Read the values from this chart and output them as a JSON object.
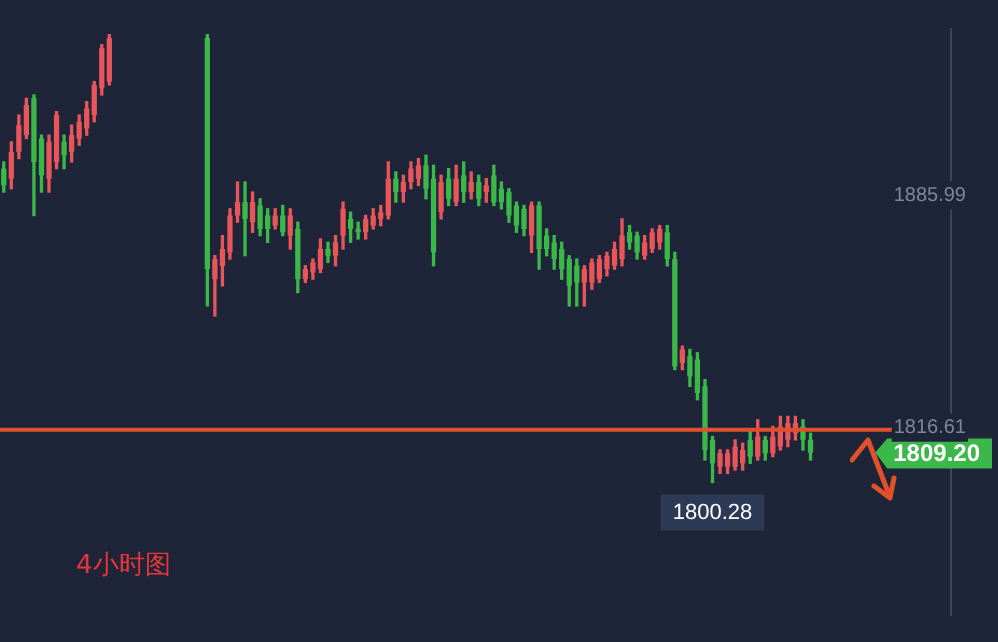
{
  "chart_data": {
    "type": "candlestick",
    "categories": [
      null,
      null,
      null,
      null,
      null,
      null,
      null,
      null,
      null,
      null,
      null,
      null,
      null,
      null,
      null,
      null,
      null,
      null,
      null,
      null,
      null,
      null,
      null,
      null,
      null,
      null,
      null,
      null,
      null,
      null,
      null,
      null,
      null,
      null,
      null,
      null,
      null,
      null,
      null,
      null,
      null,
      null,
      null,
      null,
      null,
      null,
      null,
      null,
      null,
      null,
      null,
      null,
      null,
      null,
      null,
      null,
      null,
      null,
      null,
      null,
      null,
      null,
      null,
      null,
      null,
      null,
      null,
      null,
      null,
      null,
      null,
      null,
      null,
      null,
      null,
      null,
      null,
      null,
      null,
      null,
      null,
      null,
      null,
      null,
      null,
      null,
      null,
      null,
      null,
      null,
      null,
      null,
      null,
      null,
      null,
      null,
      null,
      null,
      null,
      null,
      null,
      null,
      null,
      null,
      null,
      null,
      null,
      null,
      null,
      null,
      null,
      null,
      null,
      null,
      null,
      null,
      null,
      null,
      null,
      null,
      null,
      null,
      null,
      null,
      null,
      null
    ],
    "ohlc": [
      [
        1894,
        1896,
        1887,
        1889
      ],
      [
        1891,
        1902,
        1888,
        1899
      ],
      [
        1899,
        1910,
        1897,
        1907
      ],
      [
        1904,
        1915,
        1903,
        1913
      ],
      [
        1915,
        1916,
        1880,
        1896
      ],
      [
        1903,
        1904,
        1887,
        1892
      ],
      [
        1891,
        1904,
        1887,
        1902
      ],
      [
        1896,
        1911,
        1894,
        1910
      ],
      [
        1902,
        1904,
        1894,
        1898
      ],
      [
        1899,
        1907,
        1896,
        1904
      ],
      [
        1903,
        1910,
        1901,
        1908
      ],
      [
        1906,
        1914,
        1904,
        1912
      ],
      [
        1910,
        1920,
        1908,
        1919
      ],
      [
        1918,
        1931,
        1916,
        1930
      ],
      [
        1920,
        1934,
        1919,
        1933
      ],
      null,
      null,
      null,
      null,
      null,
      null,
      null,
      null,
      null,
      null,
      null,
      null,
      [
        1933,
        1934,
        1853,
        1864
      ],
      [
        1861,
        1868,
        1850,
        1867
      ],
      [
        1865,
        1874,
        1859,
        1870
      ],
      [
        1869,
        1882,
        1867,
        1880
      ],
      [
        1880,
        1890,
        1878,
        1884
      ],
      [
        1884,
        1890,
        1868,
        1879
      ],
      [
        1878,
        1887,
        1875,
        1884
      ],
      [
        1883,
        1885,
        1874,
        1876
      ],
      [
        1880,
        1882,
        1872,
        1876
      ],
      [
        1877,
        1882,
        1876,
        1880
      ],
      [
        1880,
        1883,
        1874,
        1875
      ],
      [
        1874,
        1882,
        1870,
        1880
      ],
      [
        1876,
        1878,
        1857,
        1861
      ],
      [
        1861,
        1865,
        1860,
        1864
      ],
      [
        1863,
        1867,
        1861,
        1866
      ],
      [
        1864,
        1873,
        1863,
        1870
      ],
      [
        1870,
        1872,
        1866,
        1868
      ],
      [
        1868,
        1874,
        1865,
        1872
      ],
      [
        1874,
        1884,
        1870,
        1882
      ],
      [
        1879,
        1881,
        1872,
        1876
      ],
      [
        1876,
        1878,
        1873,
        1875
      ],
      [
        1875,
        1880,
        1873,
        1879
      ],
      [
        1877,
        1882,
        1876,
        1880
      ],
      [
        1879,
        1883,
        1877,
        1881
      ],
      [
        1880,
        1896,
        1879,
        1891
      ],
      [
        1891,
        1893,
        1884,
        1887
      ],
      [
        1887,
        1892,
        1884,
        1890
      ],
      [
        1890,
        1896,
        1888,
        1894
      ],
      [
        1891,
        1897,
        1889,
        1895
      ],
      [
        1895,
        1898,
        1885,
        1888
      ],
      [
        1891,
        1895,
        1865,
        1869
      ],
      [
        1881,
        1892,
        1879,
        1890
      ],
      [
        1891,
        1894,
        1883,
        1885
      ],
      [
        1884,
        1895,
        1883,
        1891
      ],
      [
        1892,
        1896,
        1884,
        1887
      ],
      [
        1887,
        1893,
        1885,
        1890
      ],
      [
        1890,
        1892,
        1883,
        1885
      ],
      [
        1887,
        1891,
        1884,
        1889
      ],
      [
        1892,
        1895,
        1883,
        1884
      ],
      [
        1888,
        1890,
        1882,
        1884
      ],
      [
        1887,
        1888,
        1878,
        1880
      ],
      [
        1883,
        1884,
        1875,
        1877
      ],
      [
        1882,
        1883,
        1874,
        1876
      ],
      [
        1874,
        1884,
        1869,
        1883
      ],
      [
        1883,
        1884,
        1864,
        1870
      ],
      [
        1874,
        1876,
        1868,
        1870
      ],
      [
        1872,
        1874,
        1864,
        1867
      ],
      [
        1870,
        1872,
        1861,
        1864
      ],
      [
        1867,
        1868,
        1853,
        1859
      ],
      [
        1865,
        1867,
        1853,
        1860
      ],
      [
        1860,
        1865,
        1853,
        1864
      ],
      [
        1860,
        1867,
        1858,
        1866
      ],
      [
        1861,
        1868,
        1860,
        1867
      ],
      [
        1864,
        1869,
        1862,
        1868
      ],
      [
        1865,
        1872,
        1864,
        1870
      ],
      [
        1867,
        1879,
        1865,
        1874
      ],
      [
        1875,
        1877,
        1870,
        1872
      ],
      [
        1874,
        1875,
        1867,
        1869
      ],
      [
        1868,
        1874,
        1867,
        1872
      ],
      [
        1870,
        1876,
        1869,
        1875
      ],
      [
        1872,
        1877,
        1870,
        1876
      ],
      [
        1875,
        1877,
        1865,
        1867
      ],
      [
        1867,
        1869,
        1834,
        1835
      ],
      [
        1836,
        1841,
        1834,
        1840
      ],
      [
        1838,
        1840,
        1829,
        1832
      ],
      [
        1837,
        1839,
        1825,
        1827
      ],
      [
        1829,
        1831,
        1807,
        1810
      ],
      [
        1813,
        1814,
        1800.28,
        1806
      ],
      [
        1805,
        1810,
        1803,
        1809
      ],
      [
        1805,
        1810,
        1803,
        1809
      ],
      [
        1805,
        1813,
        1804,
        1811
      ],
      [
        1806,
        1812,
        1804,
        1810
      ],
      [
        1813,
        1816,
        1806,
        1808
      ],
      [
        1808,
        1819,
        1807,
        1814
      ],
      [
        1813,
        1814,
        1807,
        1809
      ],
      [
        1809,
        1817,
        1808,
        1814
      ],
      [
        1811,
        1820,
        1810,
        1817
      ],
      [
        1813,
        1820,
        1811,
        1818
      ],
      [
        1815,
        1820,
        1813,
        1818
      ],
      [
        1817,
        1819,
        1810,
        1813
      ],
      [
        1813,
        1815,
        1807,
        1809.2
      ],
      null,
      null,
      null,
      null,
      null,
      null,
      null,
      null,
      null,
      null,
      null,
      null,
      null,
      null,
      null,
      null,
      null,
      null
    ],
    "colors": [
      "#3cb84a",
      "#e8555a",
      "#e8555a",
      "#e8555a",
      "#3cb84a",
      "#3cb84a",
      "#e8555a",
      "#e8555a",
      "#3cb84a",
      "#e8555a",
      "#e8555a",
      "#e8555a",
      "#e8555a",
      "#e8555a",
      "#e8555a",
      null,
      null,
      null,
      null,
      null,
      null,
      null,
      null,
      null,
      null,
      null,
      null,
      "#3cb84a",
      "#e8555a",
      "#e8555a",
      "#e8555a",
      "#e8555a",
      "#3cb84a",
      "#e8555a",
      "#3cb84a",
      "#3cb84a",
      "#e8555a",
      "#3cb84a",
      "#e8555a",
      "#3cb84a",
      "#e8555a",
      "#e8555a",
      "#e8555a",
      "#3cb84a",
      "#e8555a",
      "#e8555a",
      "#3cb84a",
      "#3cb84a",
      "#e8555a",
      "#e8555a",
      "#e8555a",
      "#e8555a",
      "#3cb84a",
      "#e8555a",
      "#e8555a",
      "#e8555a",
      "#3cb84a",
      "#3cb84a",
      "#e8555a",
      "#3cb84a",
      "#e8555a",
      "#3cb84a",
      "#e8555a",
      "#3cb84a",
      "#e8555a",
      "#3cb84a",
      "#3cb84a",
      "#3cb84a",
      "#3cb84a",
      "#3cb84a",
      "#e8555a",
      "#3cb84a",
      "#3cb84a",
      "#3cb84a",
      "#3cb84a",
      "#3cb84a",
      "#3cb84a",
      "#e8555a",
      "#e8555a",
      "#e8555a",
      "#e8555a",
      "#e8555a",
      "#e8555a",
      "#3cb84a",
      "#3cb84a",
      "#e8555a",
      "#e8555a",
      "#e8555a",
      "#3cb84a",
      "#3cb84a",
      "#e8555a",
      "#3cb84a",
      "#3cb84a",
      "#3cb84a",
      "#3cb84a",
      "#e8555a",
      "#e8555a",
      "#e8555a",
      "#e8555a",
      "#3cb84a",
      "#e8555a",
      "#3cb84a",
      "#e8555a",
      "#e8555a",
      "#e8555a",
      "#e8555a",
      "#3cb84a",
      "#3cb84a",
      null,
      null,
      null,
      null,
      null,
      null,
      null,
      null,
      null,
      null,
      null,
      null,
      null,
      null,
      null,
      null,
      null,
      null
    ],
    "ylim": [
      1761,
      1936
    ],
    "yticks": [
      1816.61,
      1885.99
    ],
    "ref_lines": [
      {
        "axis": "y",
        "value": 1816,
        "color": "#e0502a"
      }
    ],
    "annotations": [
      "1809.20",
      {
        "text": "1800.28",
        "y": 1800.28
      },
      "4小时图"
    ],
    "grid": false,
    "legend": false
  }
}
